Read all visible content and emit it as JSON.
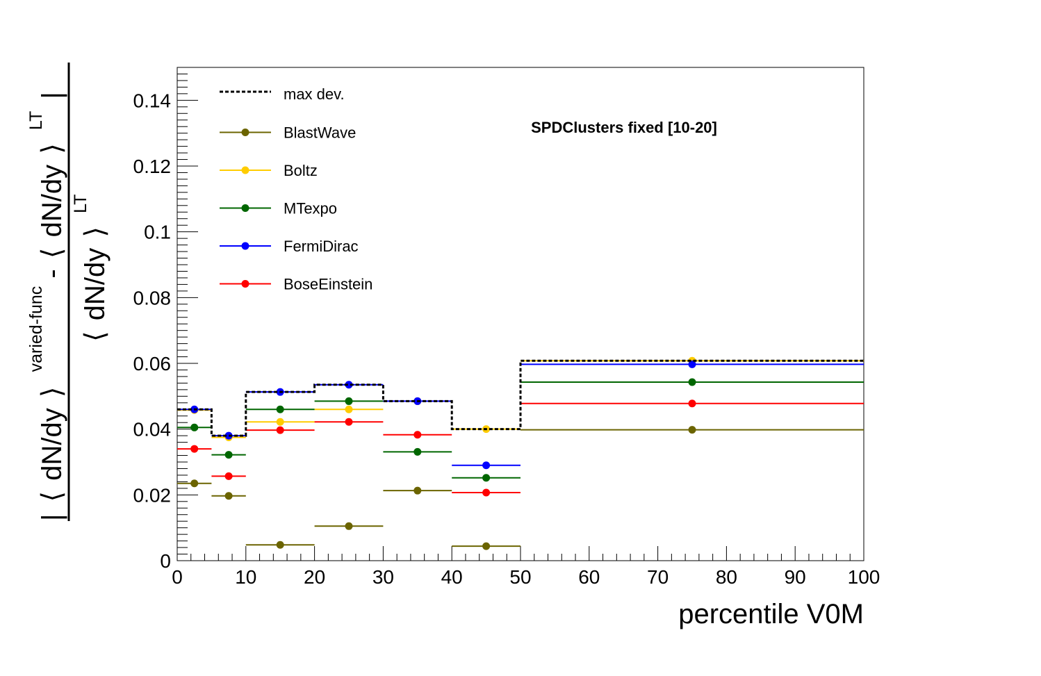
{
  "chart_data": {
    "type": "line",
    "title": "SPDClusters fixed [10-20]",
    "xlabel": "percentile V0M",
    "ylabel": {
      "numerator_parts": [
        "|",
        "⟨",
        "dN/dy",
        "⟩",
        "varied-func",
        " - ",
        "⟨",
        "dN/dy",
        "⟩",
        "LT",
        "|"
      ],
      "denominator_parts": [
        "⟨",
        "dN/dy",
        "⟩",
        "LT"
      ]
    },
    "xlim": [
      0,
      100
    ],
    "ylim": [
      0,
      0.15
    ],
    "xticks": [
      "0",
      "10",
      "20",
      "30",
      "40",
      "50",
      "60",
      "70",
      "80",
      "90",
      "100"
    ],
    "yticks": [
      "0",
      "0.02",
      "0.04",
      "0.06",
      "0.08",
      "0.1",
      "0.12",
      "0.14"
    ],
    "bins": [
      [
        0,
        5
      ],
      [
        5,
        10
      ],
      [
        10,
        20
      ],
      [
        20,
        30
      ],
      [
        30,
        40
      ],
      [
        40,
        50
      ],
      [
        50,
        100
      ]
    ],
    "legend_position": "top-left",
    "grid": false,
    "max_dev": {
      "name": "max dev.",
      "color": "#000000",
      "values": [
        0.046,
        0.038,
        0.0513,
        0.0535,
        0.0485,
        0.04,
        0.0608
      ]
    },
    "series": [
      {
        "name": "BlastWave",
        "color": "#6b6400",
        "values": [
          0.0235,
          0.0197,
          0.0048,
          0.0105,
          0.0213,
          0.0044,
          0.0398
        ]
      },
      {
        "name": "Boltz",
        "color": "#ffcc00",
        "values": [
          0.0458,
          0.0375,
          0.0422,
          0.046,
          0.0485,
          0.04,
          0.0608
        ]
      },
      {
        "name": "MTexpo",
        "color": "#006600",
        "values": [
          0.0405,
          0.0322,
          0.046,
          0.0485,
          0.0331,
          0.0252,
          0.0543
        ]
      },
      {
        "name": "FermiDirac",
        "color": "#0000ff",
        "values": [
          0.046,
          0.038,
          0.0513,
          0.0535,
          0.0485,
          0.029,
          0.0597
        ]
      },
      {
        "name": "BoseEinstein",
        "color": "#ff0000",
        "values": [
          0.034,
          0.0257,
          0.0397,
          0.0422,
          0.0383,
          0.0207,
          0.0478
        ]
      }
    ]
  }
}
